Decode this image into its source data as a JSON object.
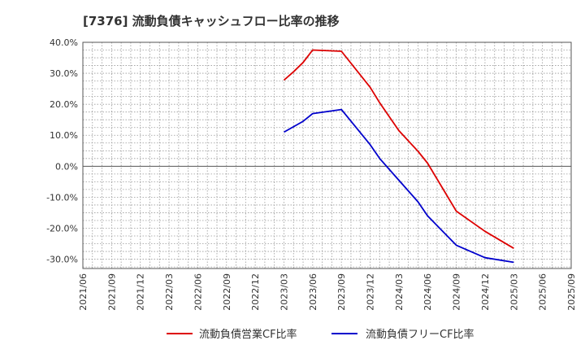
{
  "chart_data": {
    "type": "line",
    "title": "[7376]  流動負債キャッシュフロー比率の推移",
    "xlabel": "",
    "ylabel": "",
    "x_ticks": [
      "2021/06",
      "2021/09",
      "2021/12",
      "2022/03",
      "2022/06",
      "2022/09",
      "2022/12",
      "2023/03",
      "2023/06",
      "2023/09",
      "2023/12",
      "2024/03",
      "2024/06",
      "2024/09",
      "2024/12",
      "2025/03",
      "2025/06",
      "2025/09"
    ],
    "y_ticks": [
      "40.0%",
      "30.0%",
      "20.0%",
      "10.0%",
      "0.0%",
      "-10.0%",
      "-20.0%",
      "-30.0%"
    ],
    "ylim": [
      -33,
      40
    ],
    "grid": true,
    "legend_position": "bottom",
    "series": [
      {
        "name": "流動負債営業CF比率",
        "color": "#dd0000",
        "x": [
          "2023/03",
          "2023/04",
          "2023/05",
          "2023/06",
          "2023/09",
          "2023/12",
          "2024/01",
          "2024/03",
          "2024/05",
          "2024/06",
          "2024/09",
          "2024/12",
          "2025/03"
        ],
        "values": [
          27.8,
          30.5,
          33.5,
          37.5,
          37.1,
          25.5,
          20.5,
          11.5,
          4.8,
          1.0,
          -14.5,
          -21.0,
          -26.5
        ]
      },
      {
        "name": "流動負債フリーCF比率",
        "color": "#0000cc",
        "x": [
          "2023/03",
          "2023/05",
          "2023/06",
          "2023/09",
          "2023/12",
          "2024/01",
          "2024/03",
          "2024/05",
          "2024/06",
          "2024/09",
          "2024/12",
          "2025/03"
        ],
        "values": [
          11.0,
          14.5,
          17.0,
          18.3,
          7.0,
          2.5,
          -4.5,
          -11.5,
          -16.0,
          -25.5,
          -29.5,
          -31.0
        ]
      }
    ]
  }
}
